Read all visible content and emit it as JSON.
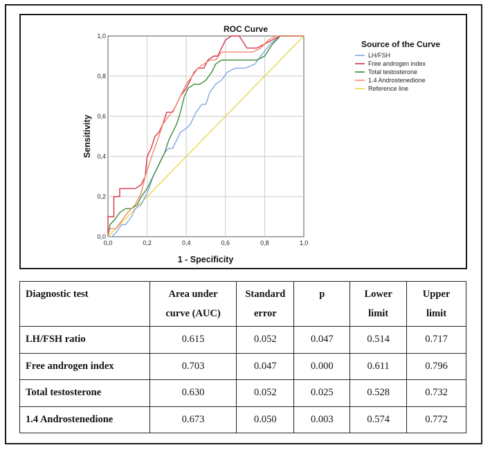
{
  "chart_data": {
    "type": "line",
    "title": "ROC Curve",
    "xlabel": "1 - Specificity",
    "ylabel": "Sensitivity",
    "xlim": [
      0,
      1
    ],
    "ylim": [
      0,
      1
    ],
    "xticks": [
      "0,0",
      "0,2",
      "0,4",
      "0,6",
      "0,8",
      "1,0"
    ],
    "yticks": [
      "0,0",
      "0,2",
      "0,4",
      "0,6",
      "0,8",
      "1,0"
    ],
    "grid": true,
    "legend_title": "Source of the Curve",
    "legend_position": "right",
    "series": [
      {
        "name": "LH/FSH",
        "color": "#7fa6e0",
        "points": [
          [
            0,
            0
          ],
          [
            0.02,
            0
          ],
          [
            0.04,
            0.02
          ],
          [
            0.07,
            0.06
          ],
          [
            0.09,
            0.06
          ],
          [
            0.12,
            0.1
          ],
          [
            0.14,
            0.14
          ],
          [
            0.17,
            0.16
          ],
          [
            0.19,
            0.2
          ],
          [
            0.21,
            0.24
          ],
          [
            0.23,
            0.3
          ],
          [
            0.25,
            0.34
          ],
          [
            0.27,
            0.38
          ],
          [
            0.29,
            0.42
          ],
          [
            0.31,
            0.44
          ],
          [
            0.33,
            0.44
          ],
          [
            0.35,
            0.48
          ],
          [
            0.37,
            0.52
          ],
          [
            0.4,
            0.54
          ],
          [
            0.42,
            0.56
          ],
          [
            0.45,
            0.62
          ],
          [
            0.48,
            0.66
          ],
          [
            0.5,
            0.66
          ],
          [
            0.52,
            0.72
          ],
          [
            0.55,
            0.76
          ],
          [
            0.58,
            0.78
          ],
          [
            0.61,
            0.82
          ],
          [
            0.65,
            0.84
          ],
          [
            0.7,
            0.84
          ],
          [
            0.75,
            0.86
          ],
          [
            0.78,
            0.9
          ],
          [
            0.83,
            0.96
          ],
          [
            0.88,
            1
          ],
          [
            1,
            1
          ]
        ]
      },
      {
        "name": "Free androgen index",
        "color": "#d8304a",
        "points": [
          [
            0,
            0
          ],
          [
            0,
            0.1
          ],
          [
            0.03,
            0.1
          ],
          [
            0.03,
            0.2
          ],
          [
            0.06,
            0.2
          ],
          [
            0.06,
            0.24
          ],
          [
            0.14,
            0.24
          ],
          [
            0.17,
            0.26
          ],
          [
            0.19,
            0.3
          ],
          [
            0.2,
            0.4
          ],
          [
            0.22,
            0.44
          ],
          [
            0.24,
            0.5
          ],
          [
            0.26,
            0.52
          ],
          [
            0.28,
            0.56
          ],
          [
            0.3,
            0.62
          ],
          [
            0.33,
            0.62
          ],
          [
            0.35,
            0.66
          ],
          [
            0.37,
            0.7
          ],
          [
            0.4,
            0.74
          ],
          [
            0.42,
            0.78
          ],
          [
            0.44,
            0.82
          ],
          [
            0.46,
            0.84
          ],
          [
            0.49,
            0.84
          ],
          [
            0.51,
            0.88
          ],
          [
            0.54,
            0.9
          ],
          [
            0.56,
            0.9
          ],
          [
            0.58,
            0.94
          ],
          [
            0.6,
            0.98
          ],
          [
            0.63,
            1
          ],
          [
            0.67,
            1
          ],
          [
            0.71,
            0.94
          ],
          [
            0.76,
            0.94
          ],
          [
            0.8,
            0.96
          ],
          [
            0.84,
            0.98
          ],
          [
            0.88,
            1
          ],
          [
            1,
            1
          ]
        ]
      },
      {
        "name": "Total testosterone",
        "color": "#3a8a3a",
        "points": [
          [
            0,
            0
          ],
          [
            0.01,
            0.06
          ],
          [
            0.03,
            0.08
          ],
          [
            0.06,
            0.12
          ],
          [
            0.09,
            0.14
          ],
          [
            0.12,
            0.14
          ],
          [
            0.15,
            0.16
          ],
          [
            0.17,
            0.2
          ],
          [
            0.2,
            0.24
          ],
          [
            0.23,
            0.3
          ],
          [
            0.26,
            0.36
          ],
          [
            0.29,
            0.42
          ],
          [
            0.31,
            0.48
          ],
          [
            0.33,
            0.52
          ],
          [
            0.35,
            0.56
          ],
          [
            0.37,
            0.62
          ],
          [
            0.39,
            0.7
          ],
          [
            0.41,
            0.74
          ],
          [
            0.44,
            0.76
          ],
          [
            0.47,
            0.76
          ],
          [
            0.5,
            0.78
          ],
          [
            0.53,
            0.82
          ],
          [
            0.55,
            0.86
          ],
          [
            0.58,
            0.88
          ],
          [
            0.62,
            0.88
          ],
          [
            0.66,
            0.88
          ],
          [
            0.72,
            0.88
          ],
          [
            0.76,
            0.88
          ],
          [
            0.8,
            0.9
          ],
          [
            0.84,
            0.96
          ],
          [
            0.88,
            1
          ],
          [
            1,
            1
          ]
        ]
      },
      {
        "name": "1.4 Androstenedione",
        "color": "#f0866c",
        "points": [
          [
            0,
            0
          ],
          [
            0.01,
            0.04
          ],
          [
            0.04,
            0.04
          ],
          [
            0.07,
            0.08
          ],
          [
            0.1,
            0.12
          ],
          [
            0.14,
            0.16
          ],
          [
            0.17,
            0.22
          ],
          [
            0.19,
            0.3
          ],
          [
            0.21,
            0.36
          ],
          [
            0.23,
            0.42
          ],
          [
            0.26,
            0.5
          ],
          [
            0.28,
            0.56
          ],
          [
            0.31,
            0.6
          ],
          [
            0.34,
            0.64
          ],
          [
            0.36,
            0.68
          ],
          [
            0.38,
            0.72
          ],
          [
            0.4,
            0.76
          ],
          [
            0.43,
            0.8
          ],
          [
            0.46,
            0.84
          ],
          [
            0.49,
            0.86
          ],
          [
            0.52,
            0.88
          ],
          [
            0.55,
            0.88
          ],
          [
            0.58,
            0.92
          ],
          [
            0.62,
            0.92
          ],
          [
            0.66,
            0.92
          ],
          [
            0.7,
            0.92
          ],
          [
            0.74,
            0.92
          ],
          [
            0.78,
            0.94
          ],
          [
            0.82,
            0.98
          ],
          [
            0.86,
            1
          ],
          [
            1,
            1
          ]
        ]
      },
      {
        "name": "Reference line",
        "color": "#e6d84a",
        "points": [
          [
            0,
            0
          ],
          [
            1,
            1
          ]
        ]
      }
    ]
  },
  "table": {
    "headers": [
      "Diagnostic test",
      "Area under curve (AUC)",
      "Standard error",
      "p",
      "Lower limit",
      "Upper limit"
    ],
    "rows": [
      {
        "test": "LH/FSH ratio",
        "auc": "0.615",
        "se": "0.052",
        "p": "0.047",
        "lower": "0.514",
        "upper": "0.717"
      },
      {
        "test": "Free androgen index",
        "auc": "0.703",
        "se": "0.047",
        "p": "0.000",
        "lower": "0.611",
        "upper": "0.796"
      },
      {
        "test": "Total testosterone",
        "auc": "0.630",
        "se": "0.052",
        "p": "0.025",
        "lower": "0.528",
        "upper": "0.732"
      },
      {
        "test": "1.4 Androstenedione",
        "auc": "0.673",
        "se": "0.050",
        "p": "0.003",
        "lower": "0.574",
        "upper": "0.772"
      }
    ]
  }
}
